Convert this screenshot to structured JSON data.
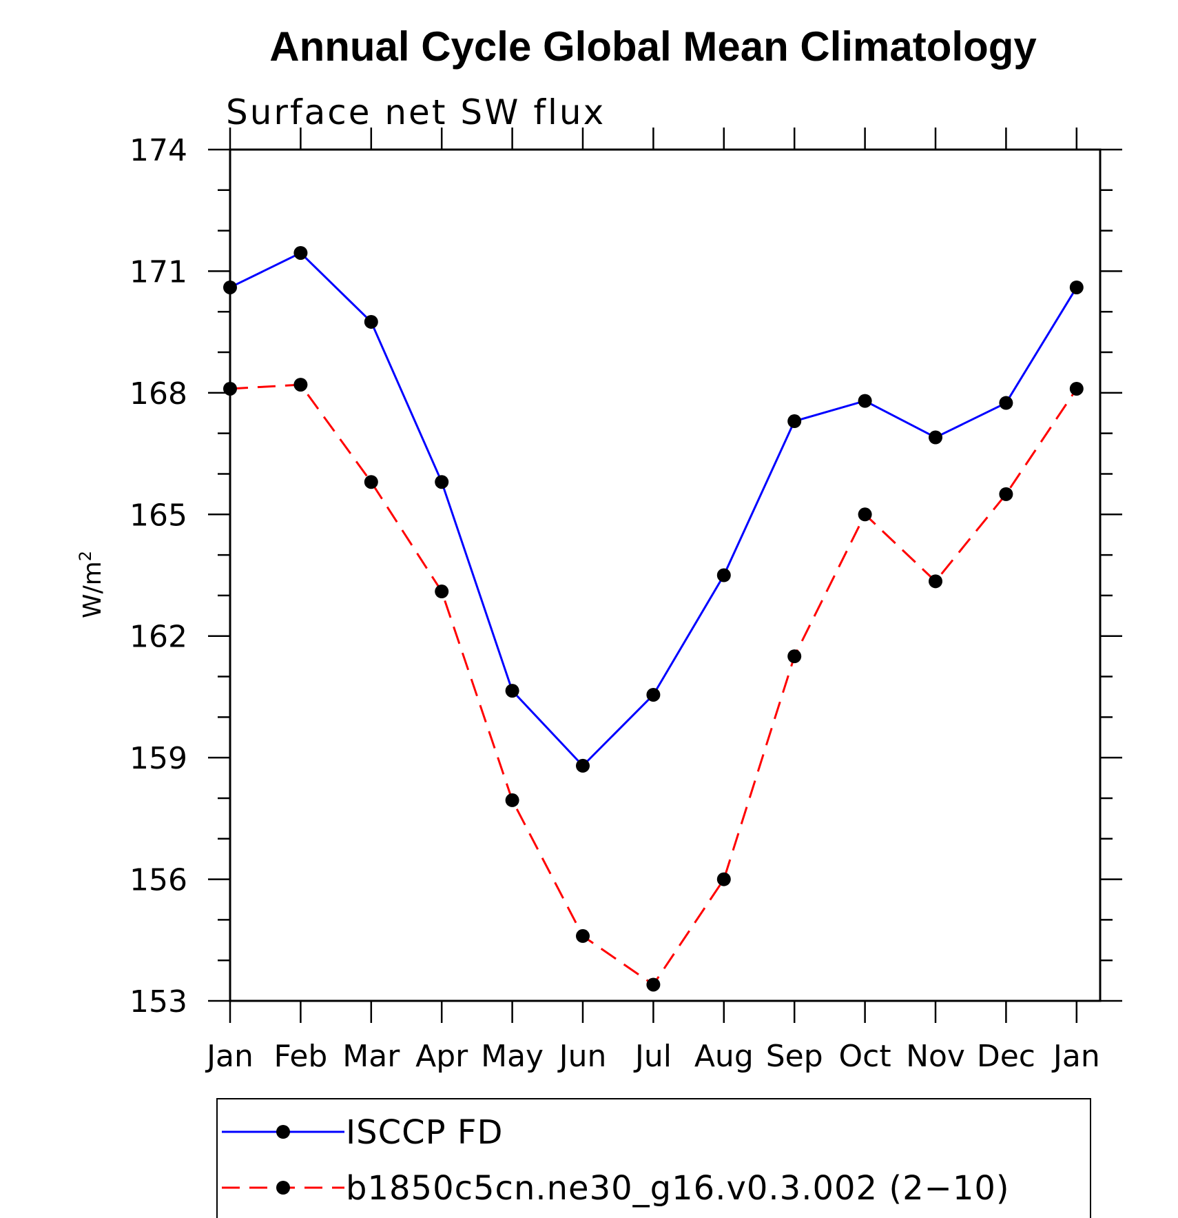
{
  "chart_data": {
    "type": "line",
    "title": "Annual Cycle Global Mean Climatology",
    "subtitle": "Surface net SW flux",
    "ylabel": "W/m",
    "ylabel_superscript": "2",
    "xlabel": "",
    "categories": [
      "Jan",
      "Feb",
      "Mar",
      "Apr",
      "May",
      "Jun",
      "Jul",
      "Aug",
      "Sep",
      "Oct",
      "Nov",
      "Dec",
      "Jan"
    ],
    "ylim": [
      153,
      174
    ],
    "yticks": [
      "174",
      "171",
      "168",
      "165",
      "162",
      "159",
      "156",
      "153"
    ],
    "legend_position": "bottom",
    "series": [
      {
        "name": "ISCCP FD",
        "color": "#0000ff",
        "line_style": "solid",
        "marker": "filled-circle",
        "values": [
          170.6,
          171.45,
          169.75,
          165.8,
          160.65,
          158.8,
          160.55,
          163.5,
          167.3,
          167.8,
          166.9,
          167.75,
          170.6
        ]
      },
      {
        "name": "b1850c5cn.ne30_g16.v0.3.002 (2−10)",
        "color": "#ff0000",
        "line_style": "dashed",
        "marker": "filled-circle",
        "values": [
          168.1,
          168.2,
          165.8,
          163.1,
          157.95,
          154.6,
          153.4,
          156.0,
          161.5,
          165.0,
          163.35,
          165.5,
          168.1
        ]
      }
    ]
  }
}
